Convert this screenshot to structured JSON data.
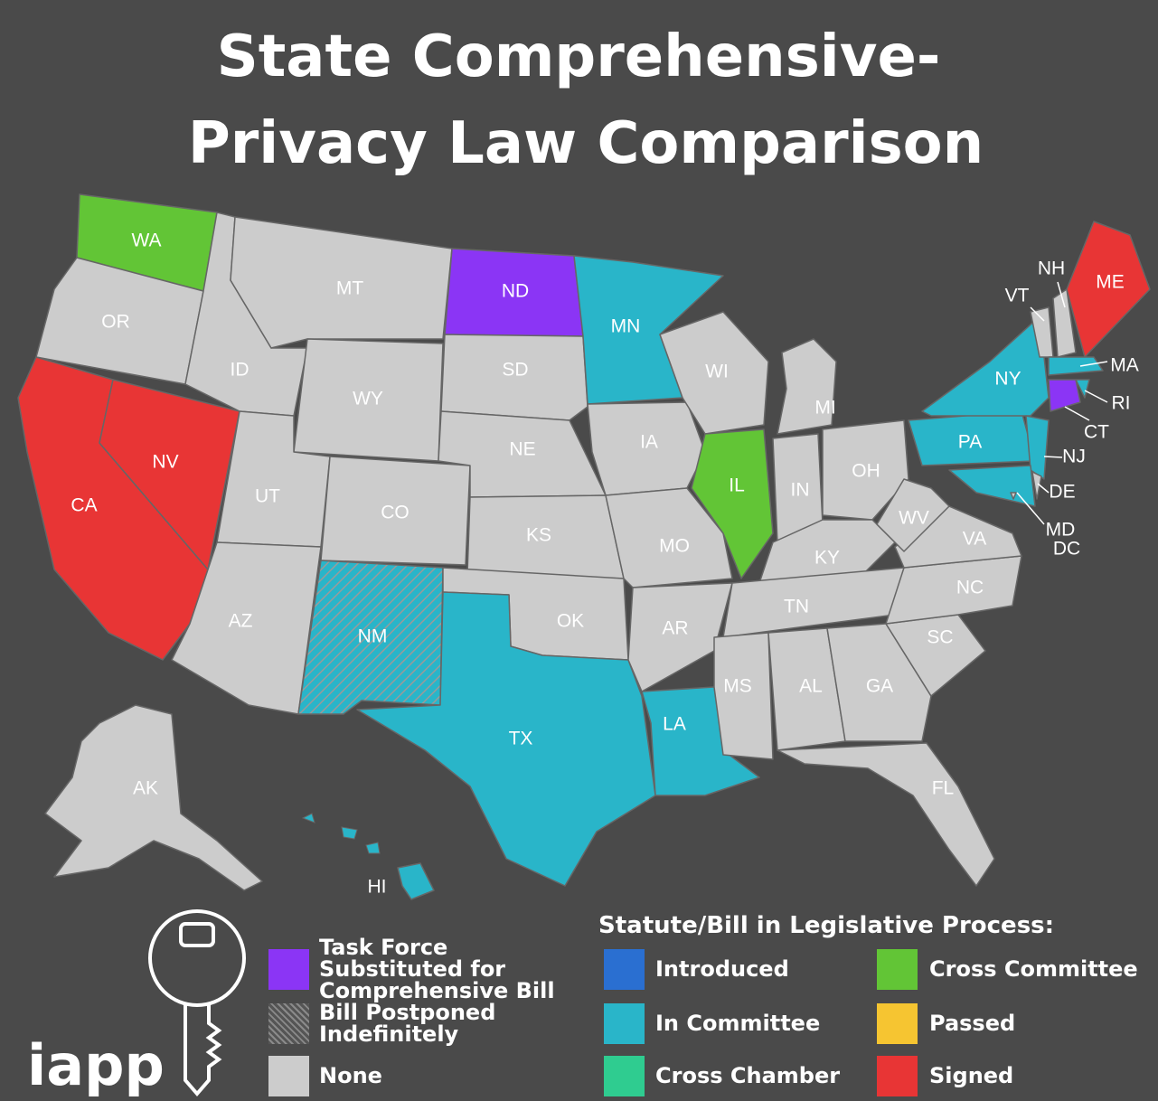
{
  "title": [
    "State Comprehensive-",
    "Privacy Law Comparison"
  ],
  "logo": "iapp",
  "states": [
    {
      "label": "WA",
      "color": "#62c536"
    },
    {
      "label": "OR",
      "color": "#cccccc"
    },
    {
      "label": "CA",
      "color": "#e83535"
    },
    {
      "label": "NV",
      "color": "#e83535"
    },
    {
      "label": "ID",
      "color": "#cccccc"
    },
    {
      "label": "MT",
      "color": "#cccccc"
    },
    {
      "label": "WY",
      "color": "#cccccc"
    },
    {
      "label": "UT",
      "color": "#cccccc"
    },
    {
      "label": "AZ",
      "color": "#cccccc"
    },
    {
      "label": "CO",
      "color": "#cccccc"
    },
    {
      "label": "NM",
      "color": "#29b5c9",
      "hatched": true
    },
    {
      "label": "ND",
      "color": "#8b35f5"
    },
    {
      "label": "SD",
      "color": "#cccccc"
    },
    {
      "label": "NE",
      "color": "#cccccc"
    },
    {
      "label": "KS",
      "color": "#cccccc"
    },
    {
      "label": "OK",
      "color": "#cccccc"
    },
    {
      "label": "TX",
      "color": "#29b5c9"
    },
    {
      "label": "MN",
      "color": "#29b5c9"
    },
    {
      "label": "IA",
      "color": "#cccccc"
    },
    {
      "label": "MO",
      "color": "#cccccc"
    },
    {
      "label": "AR",
      "color": "#cccccc"
    },
    {
      "label": "LA",
      "color": "#29b5c9"
    },
    {
      "label": "WI",
      "color": "#cccccc"
    },
    {
      "label": "IL",
      "color": "#62c536"
    },
    {
      "label": "MI",
      "color": "#cccccc"
    },
    {
      "label": "IN",
      "color": "#cccccc"
    },
    {
      "label": "OH",
      "color": "#cccccc"
    },
    {
      "label": "KY",
      "color": "#cccccc"
    },
    {
      "label": "TN",
      "color": "#cccccc"
    },
    {
      "label": "MS",
      "color": "#cccccc"
    },
    {
      "label": "AL",
      "color": "#cccccc"
    },
    {
      "label": "GA",
      "color": "#cccccc"
    },
    {
      "label": "FL",
      "color": "#cccccc"
    },
    {
      "label": "SC",
      "color": "#cccccc"
    },
    {
      "label": "NC",
      "color": "#cccccc"
    },
    {
      "label": "VA",
      "color": "#cccccc"
    },
    {
      "label": "WV",
      "color": "#cccccc"
    },
    {
      "label": "PA",
      "color": "#29b5c9"
    },
    {
      "label": "NY",
      "color": "#29b5c9"
    },
    {
      "label": "NJ",
      "color": "#29b5c9"
    },
    {
      "label": "DE",
      "color": "#cccccc"
    },
    {
      "label": "MD",
      "color": "#29b5c9"
    },
    {
      "label": "DC",
      "color": "#cccccc"
    },
    {
      "label": "VT",
      "color": "#cccccc"
    },
    {
      "label": "NH",
      "color": "#cccccc"
    },
    {
      "label": "ME",
      "color": "#e83535"
    },
    {
      "label": "MA",
      "color": "#29b5c9"
    },
    {
      "label": "CT",
      "color": "#8b35f5"
    },
    {
      "label": "RI",
      "color": "#29b5c9"
    },
    {
      "label": "AK",
      "color": "#cccccc"
    },
    {
      "label": "HI",
      "color": "#29b5c9"
    }
  ],
  "legend": {
    "title": "Statute/Bill in Legislative Process:",
    "items": [
      {
        "label": "Task Force Substituted for Comprehensive Bill",
        "color": "#8b35f5"
      },
      {
        "label": "Bill Postponed Indefinitely",
        "color": "#555555",
        "hatched": true
      },
      {
        "label": "None",
        "color": "#cccccc"
      },
      {
        "label": "Introduced",
        "color": "#2a6fd1"
      },
      {
        "label": "In Committee",
        "color": "#29b5c9"
      },
      {
        "label": "Cross Chamber",
        "color": "#2fcc90"
      },
      {
        "label": "Cross Committee",
        "color": "#62c536"
      },
      {
        "label": "Passed",
        "color": "#f6c531"
      },
      {
        "label": "Signed",
        "color": "#e83535"
      }
    ]
  }
}
